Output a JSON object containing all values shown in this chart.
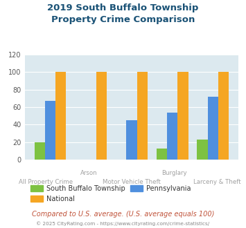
{
  "title": "2019 South Buffalo Township\nProperty Crime Comparison",
  "title_color": "#1a5276",
  "categories": [
    "All Property Crime",
    "Arson",
    "Motor Vehicle Theft",
    "Burglary",
    "Larceny & Theft"
  ],
  "cat_row": [
    2,
    1,
    2,
    1,
    2
  ],
  "south_buffalo": [
    20,
    0,
    0,
    13,
    23
  ],
  "pennsylvania": [
    67,
    0,
    45,
    54,
    72
  ],
  "national": [
    100,
    100,
    100,
    100,
    100
  ],
  "bar_colors": {
    "south_buffalo": "#7dc242",
    "pennsylvania": "#4f8fde",
    "national": "#f5a623"
  },
  "ylim": [
    0,
    120
  ],
  "yticks": [
    0,
    20,
    40,
    60,
    80,
    100,
    120
  ],
  "plot_bg": "#dce9ef",
  "legend_labels": [
    "South Buffalo Township",
    "Pennsylvania",
    "National"
  ],
  "footnote1": "Compared to U.S. average. (U.S. average equals 100)",
  "footnote2": "© 2025 CityRating.com - https://www.cityrating.com/crime-statistics/",
  "footnote1_color": "#c0533a",
  "footnote2_color": "#888888"
}
